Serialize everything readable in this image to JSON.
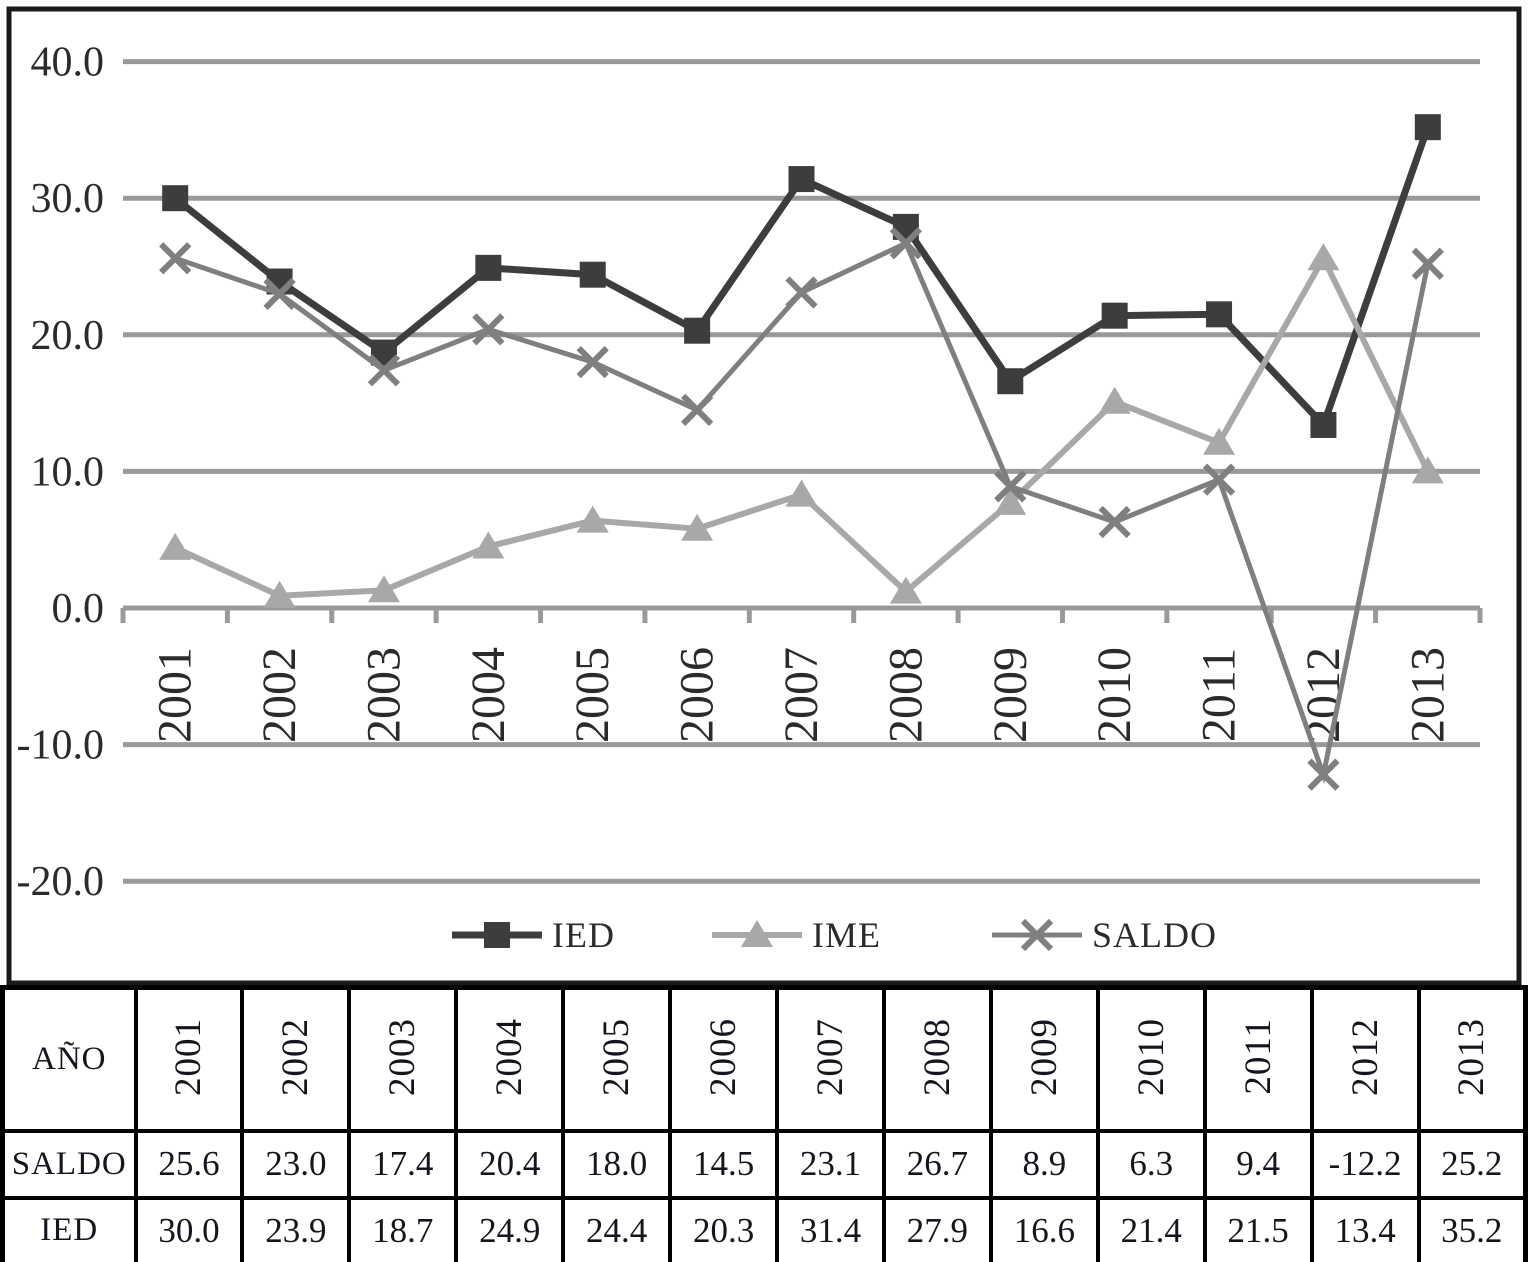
{
  "chart_data": {
    "type": "line",
    "title": "",
    "xlabel": "",
    "ylabel": "",
    "x": [
      "2001",
      "2002",
      "2003",
      "2004",
      "2005",
      "2006",
      "2007",
      "2008",
      "2009",
      "2010",
      "2011",
      "2012",
      "2013"
    ],
    "series": [
      {
        "name": "IED",
        "marker": "square",
        "color": "#3d3d3d",
        "line_width": 7,
        "values": [
          30.0,
          23.9,
          18.7,
          24.9,
          24.4,
          20.3,
          31.4,
          27.9,
          16.6,
          21.4,
          21.5,
          13.4,
          35.2
        ]
      },
      {
        "name": "IME",
        "marker": "triangle",
        "color": "#a8a8a8",
        "line_width": 6,
        "values": [
          4.4,
          0.9,
          1.3,
          4.5,
          6.4,
          5.8,
          8.3,
          1.2,
          7.7,
          15.1,
          12.1,
          25.6,
          10.0
        ]
      },
      {
        "name": "SALDO",
        "marker": "x",
        "color": "#7f7f7f",
        "line_width": 5,
        "values": [
          25.6,
          23.0,
          17.4,
          20.4,
          18.0,
          14.5,
          23.1,
          26.7,
          8.9,
          6.3,
          9.4,
          -12.2,
          25.2
        ]
      }
    ],
    "ylim": [
      -20,
      40
    ],
    "yticks": [
      40,
      30,
      20,
      10,
      0,
      -10,
      -20
    ],
    "ytick_labels": [
      "40.0",
      "30.0",
      "20.0",
      "10.0",
      "0.0",
      "-10.0",
      "-20.0"
    ],
    "grid": true,
    "legend_position": "bottom",
    "legend_labels": [
      "IED",
      "IME",
      "SALDO"
    ],
    "colors": {
      "grid": "#999999",
      "text": "#2b2b2b",
      "frame": "#1a1a1a"
    }
  },
  "table": {
    "corner_label": "AÑO",
    "years": [
      "2001",
      "2002",
      "2003",
      "2004",
      "2005",
      "2006",
      "2007",
      "2008",
      "2009",
      "2010",
      "2011",
      "2012",
      "2013"
    ],
    "rows": [
      {
        "label": "SALDO",
        "values": [
          "25.6",
          "23.0",
          "17.4",
          "20.4",
          "18.0",
          "14.5",
          "23.1",
          "26.7",
          "8.9",
          "6.3",
          "9.4",
          "-12.2",
          "25.2"
        ]
      },
      {
        "label": "IED",
        "values": [
          "30.0",
          "23.9",
          "18.7",
          "24.9",
          "24.4",
          "20.3",
          "31.4",
          "27.9",
          "16.6",
          "21.4",
          "21.5",
          "13.4",
          "35.2"
        ]
      }
    ]
  }
}
